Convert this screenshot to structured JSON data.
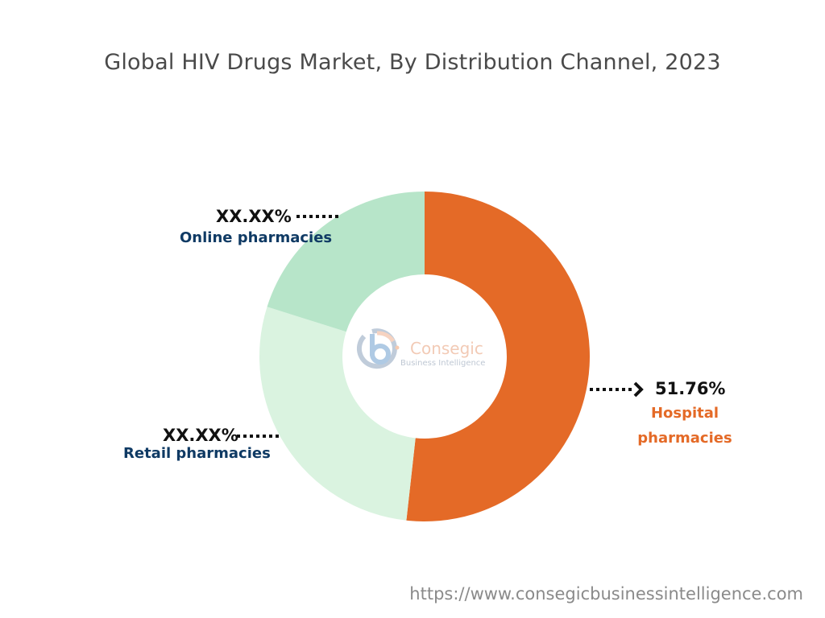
{
  "chart_data": {
    "type": "pie",
    "title": "Global HIV Drugs Market, By Distribution Channel, 2023",
    "donut": true,
    "slices": [
      {
        "name": "Hospital pharmacies",
        "value": 51.76,
        "label": "51.76%",
        "color": "#e46a27"
      },
      {
        "name": "Retail pharmacies",
        "value": 28.11,
        "label": "XX.XX%",
        "color": "#daf3e0"
      },
      {
        "name": "Online pharmacies",
        "value": 20.13,
        "label": "XX.XX%",
        "color": "#b7e5c9"
      }
    ],
    "label_colors": {
      "hospital": "#e46a27",
      "others": "#0f3a64"
    }
  },
  "logo": {
    "name": "Consegic",
    "tagline": "Business Intelligence"
  },
  "footer": {
    "url": "https://www.consegicbusinessintelligence.com"
  }
}
